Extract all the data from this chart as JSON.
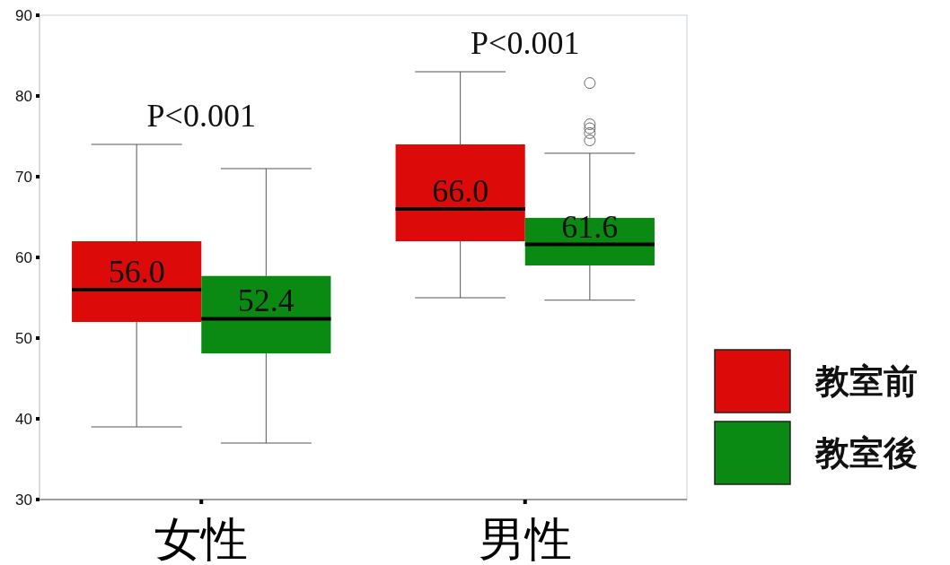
{
  "chart_data": {
    "type": "box",
    "categories": [
      "女性",
      "男性"
    ],
    "ylim": [
      30,
      90
    ],
    "yticks": [
      30,
      40,
      50,
      60,
      70,
      80,
      90
    ],
    "legend": "right",
    "series": [
      {
        "name": "教室前",
        "color": "#dd0a0a",
        "value_labels": [
          "56.0",
          "66.0"
        ],
        "boxes": [
          {
            "low": 39,
            "q1": 52,
            "median": 56,
            "q3": 62,
            "high": 74
          },
          {
            "low": 55,
            "q1": 62,
            "median": 66,
            "q3": 74,
            "high": 83
          }
        ]
      },
      {
        "name": "教室後",
        "color": "#0a8a12",
        "value_labels": [
          "52.4",
          "61.6"
        ],
        "boxes": [
          {
            "low": 37,
            "q1": 48.1,
            "median": 52.4,
            "q3": 57.7,
            "high": 71
          },
          {
            "low": 54.7,
            "q1": 59,
            "median": 61.6,
            "q3": 64.9,
            "high": 72.9,
            "outliers": [
              81.6,
              76.5,
              76,
              75.4,
              74.5
            ]
          }
        ]
      }
    ],
    "annotations": [
      "P<0.001",
      "P<0.001"
    ]
  }
}
